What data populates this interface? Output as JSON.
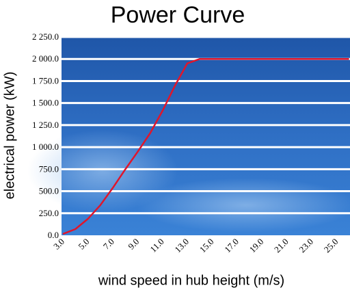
{
  "chart_data": {
    "type": "line",
    "title": "Power Curve",
    "x_label": "wind speed in hub height (m/s)",
    "y_label": "electrical power (kW)",
    "x": [
      3,
      4,
      5,
      6,
      7,
      8,
      9,
      10,
      11,
      12,
      13,
      14,
      15,
      16,
      17,
      18,
      19,
      20,
      21,
      22,
      23,
      24,
      25,
      26
    ],
    "series": [
      {
        "name": "power",
        "color": "#e0162b",
        "values": [
          15,
          70,
          185,
          340,
          535,
          745,
          945,
          1155,
          1410,
          1695,
          1950,
          2000,
          2000,
          2000,
          2000,
          2000,
          2000,
          2000,
          2000,
          2000,
          2000,
          2000,
          2000,
          2000
        ]
      }
    ],
    "xlim": [
      3,
      26
    ],
    "ylim": [
      0,
      2250
    ],
    "xticks": [
      {
        "value": 3,
        "label": "3.0"
      },
      {
        "value": 5,
        "label": "5.0"
      },
      {
        "value": 7,
        "label": "7.0"
      },
      {
        "value": 9,
        "label": "9.0"
      },
      {
        "value": 11,
        "label": "11.0"
      },
      {
        "value": 13,
        "label": "13.0"
      },
      {
        "value": 15,
        "label": "15.0"
      },
      {
        "value": 17,
        "label": "17.0"
      },
      {
        "value": 19,
        "label": "19.0"
      },
      {
        "value": 21,
        "label": "21.0"
      },
      {
        "value": 23,
        "label": "23.0"
      },
      {
        "value": 25,
        "label": "25.0"
      }
    ],
    "yticks": [
      {
        "value": 0,
        "label": "0.0"
      },
      {
        "value": 250,
        "label": "250.0"
      },
      {
        "value": 500,
        "label": "500.0"
      },
      {
        "value": 750,
        "label": "750.0"
      },
      {
        "value": 1000,
        "label": "1 000.0"
      },
      {
        "value": 1250,
        "label": "1 250.0"
      },
      {
        "value": 1500,
        "label": "1 500.0"
      },
      {
        "value": 1750,
        "label": "1 750.0"
      },
      {
        "value": 2000,
        "label": "2 000.0"
      },
      {
        "value": 2250,
        "label": "2 250.0"
      }
    ],
    "grid": true
  }
}
